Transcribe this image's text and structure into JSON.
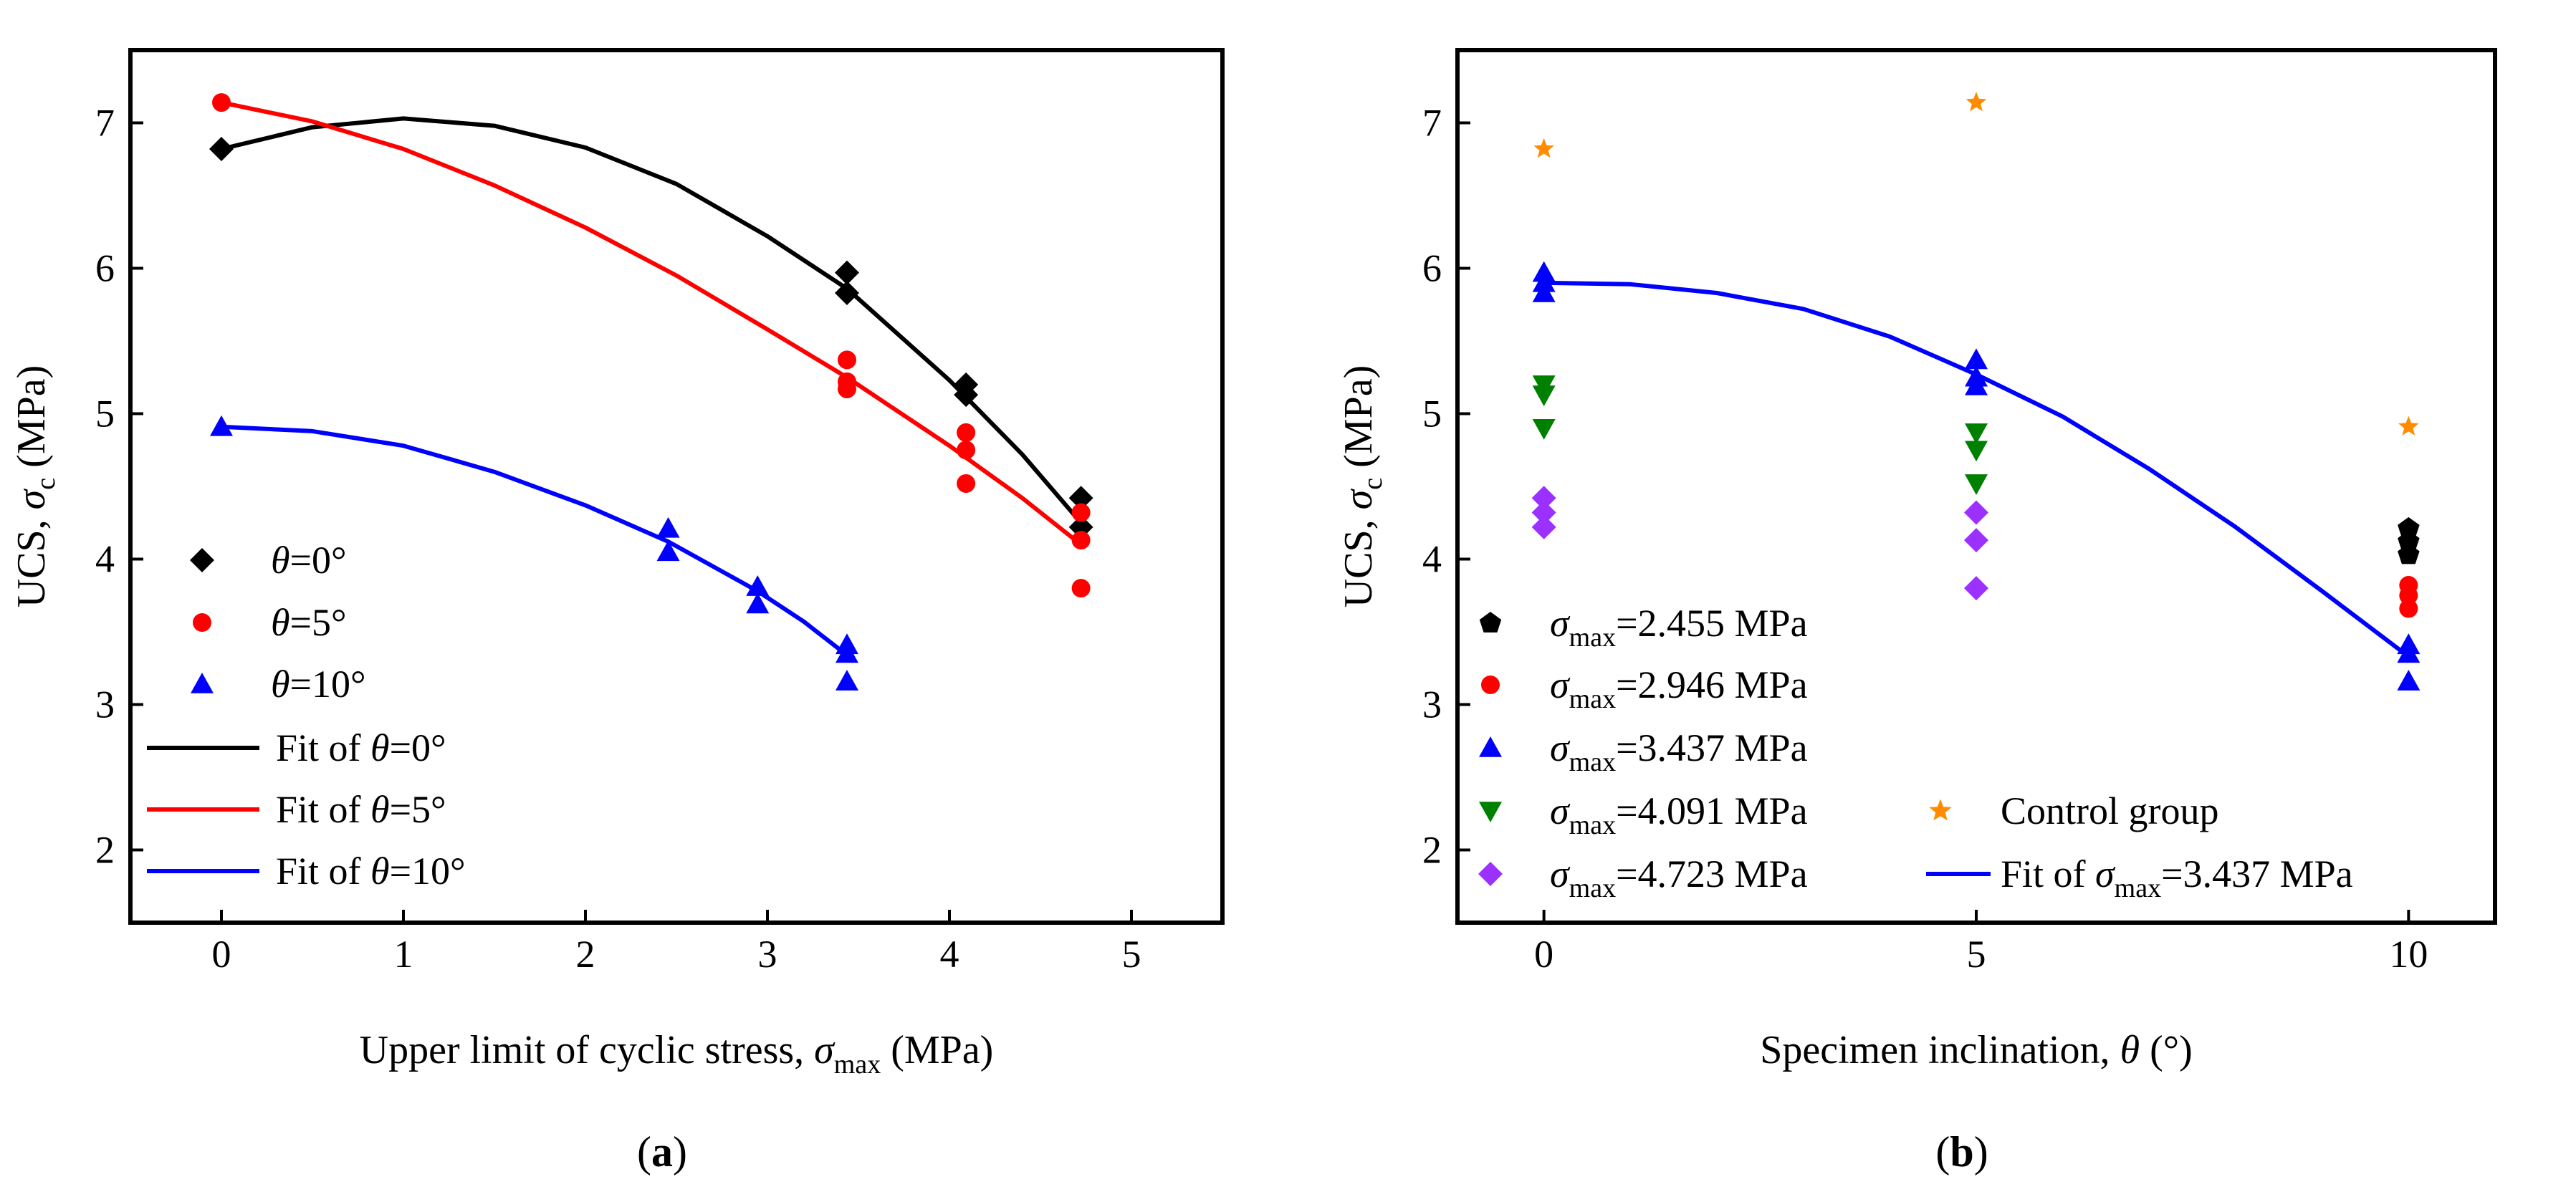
{
  "chart_data": [
    {
      "type": "scatter",
      "panel_label": "a",
      "xlabel": {
        "prefix": "Upper limit of cyclic stress, ",
        "symbol": "σ",
        "subscript": "max",
        "unit": " (MPa)"
      },
      "ylabel": {
        "prefix": "UCS, ",
        "symbol": "σ",
        "subscript": "c",
        "unit": " (MPa)"
      },
      "xlim": [
        -0.5,
        5.5
      ],
      "ylim": [
        1.5,
        7.5
      ],
      "xticks": [
        0,
        1,
        2,
        3,
        4,
        5
      ],
      "yticks": [
        2,
        3,
        4,
        5,
        6,
        7
      ],
      "legend_position": "bottom-left",
      "series": [
        {
          "name": "θ=0°",
          "legend_label": {
            "symbol": "θ",
            "text": "=0°"
          },
          "marker": "diamond",
          "color": "#000000",
          "x": [
            0,
            3.437,
            3.437,
            4.091,
            4.091,
            4.723,
            4.723
          ],
          "y": [
            6.82,
            5.97,
            5.83,
            5.2,
            5.13,
            4.42,
            4.22
          ]
        },
        {
          "name": "θ=5°",
          "legend_label": {
            "symbol": "θ",
            "text": "=5°"
          },
          "marker": "circle",
          "color": "#ff0000",
          "x": [
            0,
            3.437,
            3.437,
            3.437,
            4.091,
            4.091,
            4.091,
            4.723,
            4.723,
            4.723
          ],
          "y": [
            7.14,
            5.37,
            5.22,
            5.17,
            4.87,
            4.75,
            4.52,
            4.32,
            4.13,
            3.8
          ]
        },
        {
          "name": "θ=10°",
          "legend_label": {
            "symbol": "θ",
            "text": "=10°"
          },
          "marker": "triangle",
          "color": "#0000ff",
          "x": [
            0,
            2.455,
            2.455,
            2.946,
            2.946,
            3.437,
            3.437,
            3.437
          ],
          "y": [
            4.91,
            4.21,
            4.05,
            3.81,
            3.69,
            3.41,
            3.35,
            3.16
          ]
        }
      ],
      "fits": [
        {
          "name": "Fit of θ=0°",
          "legend_label": {
            "prefix": "Fit of ",
            "symbol": "θ",
            "text": "=0°"
          },
          "color": "#000000",
          "x": [
            0,
            0.5,
            1.0,
            1.5,
            2.0,
            2.5,
            3.0,
            3.437,
            4.0,
            4.4,
            4.723
          ],
          "y": [
            6.82,
            6.97,
            7.03,
            6.98,
            6.83,
            6.58,
            6.22,
            5.86,
            5.23,
            4.72,
            4.25
          ]
        },
        {
          "name": "Fit of θ=5°",
          "legend_label": {
            "prefix": "Fit of ",
            "symbol": "θ",
            "text": "=5°"
          },
          "color": "#ff0000",
          "x": [
            0,
            0.5,
            1.0,
            1.5,
            2.0,
            2.5,
            3.0,
            3.437,
            4.0,
            4.4,
            4.723
          ],
          "y": [
            7.14,
            7.01,
            6.82,
            6.57,
            6.28,
            5.95,
            5.58,
            5.25,
            4.78,
            4.42,
            4.1
          ]
        },
        {
          "name": "Fit of θ=10°",
          "legend_label": {
            "prefix": "Fit of ",
            "symbol": "θ",
            "text": "=10°"
          },
          "color": "#0000ff",
          "x": [
            0,
            0.5,
            1.0,
            1.5,
            2.0,
            2.455,
            2.946,
            3.2,
            3.437
          ],
          "y": [
            4.91,
            4.88,
            4.78,
            4.6,
            4.37,
            4.12,
            3.78,
            3.57,
            3.34
          ]
        }
      ]
    },
    {
      "type": "scatter",
      "panel_label": "b",
      "xlabel": {
        "prefix": "Specimen inclination, ",
        "symbol": "θ",
        "unit": " (°)"
      },
      "ylabel": {
        "prefix": "UCS, ",
        "symbol": "σ",
        "subscript": "c",
        "unit": " (MPa)"
      },
      "xlim": [
        -1,
        11
      ],
      "ylim": [
        1.5,
        7.5
      ],
      "xticks": [
        0,
        5,
        10
      ],
      "yticks": [
        2,
        3,
        4,
        5,
        6,
        7
      ],
      "legend_position": "bottom",
      "series": [
        {
          "name": "σmax=2.455 MPa",
          "legend_label": {
            "symbol": "σ",
            "subscript": "max",
            "text": "=2.455 MPa"
          },
          "marker": "pentagon",
          "color": "#000000",
          "x": [
            10,
            10,
            10
          ],
          "y": [
            4.21,
            4.12,
            4.03
          ]
        },
        {
          "name": "σmax=2.946 MPa",
          "legend_label": {
            "symbol": "σ",
            "subscript": "max",
            "text": "=2.946 MPa"
          },
          "marker": "circle",
          "color": "#ff0000",
          "x": [
            10,
            10,
            10
          ],
          "y": [
            3.82,
            3.75,
            3.66
          ]
        },
        {
          "name": "σmax=3.437 MPa",
          "legend_label": {
            "symbol": "σ",
            "subscript": "max",
            "text": "=3.437 MPa"
          },
          "marker": "triangle",
          "color": "#0000ff",
          "x": [
            0,
            0,
            0,
            5,
            5,
            5,
            10,
            10,
            10
          ],
          "y": [
            5.97,
            5.9,
            5.83,
            5.37,
            5.25,
            5.19,
            3.41,
            3.35,
            3.16
          ]
        },
        {
          "name": "σmax=4.091 MPa",
          "legend_label": {
            "symbol": "σ",
            "subscript": "max",
            "text": "=4.091 MPa"
          },
          "marker": "triangle-down",
          "color": "#008000",
          "x": [
            0,
            0,
            0,
            5,
            5,
            5
          ],
          "y": [
            5.2,
            5.13,
            4.9,
            4.87,
            4.75,
            4.52
          ]
        },
        {
          "name": "σmax=4.723 MPa",
          "legend_label": {
            "symbol": "σ",
            "subscript": "max",
            "text": "=4.723 MPa"
          },
          "marker": "diamond",
          "color": "#9b30ff",
          "x": [
            0,
            0,
            0,
            5,
            5,
            5
          ],
          "y": [
            4.42,
            4.32,
            4.22,
            4.32,
            4.13,
            3.8
          ]
        },
        {
          "name": "Control group",
          "legend_label": {
            "text": "Control group"
          },
          "marker": "star",
          "color": "#ff8c00",
          "x": [
            0,
            5,
            10
          ],
          "y": [
            6.82,
            7.14,
            4.91
          ]
        }
      ],
      "fits": [
        {
          "name": "Fit of σmax=3.437 MPa",
          "legend_label": {
            "prefix": "Fit of ",
            "symbol": "σ",
            "subscript": "max",
            "text": "=3.437 MPa"
          },
          "color": "#0000ff",
          "x": [
            0,
            1,
            2,
            3,
            4,
            5,
            6,
            7,
            8,
            9,
            10
          ],
          "y": [
            5.9,
            5.89,
            5.83,
            5.72,
            5.53,
            5.27,
            4.98,
            4.62,
            4.22,
            3.78,
            3.33
          ]
        }
      ]
    }
  ]
}
